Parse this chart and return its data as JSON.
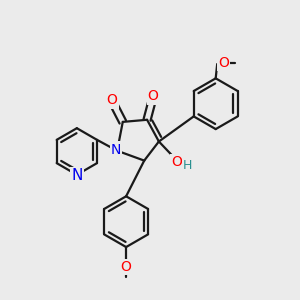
{
  "bg_color": "#ebebeb",
  "bond_color": "#1a1a1a",
  "bond_width": 1.6,
  "dbo": 0.014,
  "atom_colors": {
    "O": "#ff0000",
    "N": "#0000ee",
    "H": "#2a9090"
  },
  "afs": 10,
  "figsize": [
    3.0,
    3.0
  ],
  "dpi": 100
}
